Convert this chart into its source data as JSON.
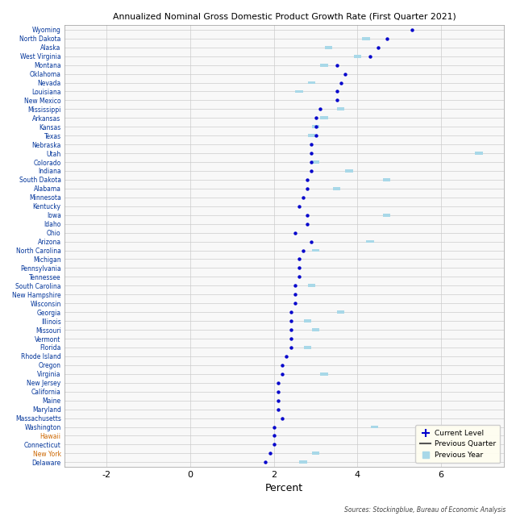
{
  "title": "Annualized Nominal Gross Domestic Product Growth Rate (First Quarter 2021)",
  "xlabel": "Percent",
  "source": "Sources: Stockingblue, Bureau of Economic Analysis",
  "states": [
    "Wyoming",
    "North Dakota",
    "Alaska",
    "West Virginia",
    "Montana",
    "Oklahoma",
    "Nevada",
    "Louisiana",
    "New Mexico",
    "Mississippi",
    "Arkansas",
    "Kansas",
    "Texas",
    "Nebraska",
    "Utah",
    "Colorado",
    "Indiana",
    "South Dakota",
    "Alabama",
    "Minnesota",
    "Kentucky",
    "Iowa",
    "Idaho",
    "Ohio",
    "Arizona",
    "North Carolina",
    "Michigan",
    "Pennsylvania",
    "Tennessee",
    "South Carolina",
    "New Hampshire",
    "Wisconsin",
    "Georgia",
    "Illinois",
    "Missouri",
    "Vermont",
    "Florida",
    "Rhode Island",
    "Oregon",
    "Virginia",
    "New Jersey",
    "California",
    "Maine",
    "Maryland",
    "Massachusetts",
    "Washington",
    "Hawaii",
    "Connecticut",
    "New York",
    "Delaware"
  ],
  "current": [
    5.3,
    4.7,
    4.5,
    4.3,
    3.5,
    3.7,
    3.6,
    3.5,
    3.5,
    3.1,
    3.0,
    3.0,
    3.0,
    2.9,
    2.9,
    2.9,
    2.9,
    2.8,
    2.8,
    2.7,
    2.6,
    2.8,
    2.8,
    2.5,
    2.9,
    2.7,
    2.6,
    2.6,
    2.6,
    2.5,
    2.5,
    2.5,
    2.4,
    2.4,
    2.4,
    2.4,
    2.4,
    2.3,
    2.2,
    2.2,
    2.1,
    2.1,
    2.1,
    2.1,
    2.2,
    2.0,
    2.0,
    2.0,
    1.9,
    1.8
  ],
  "prev_quarter": [
    null,
    null,
    null,
    null,
    null,
    null,
    null,
    null,
    null,
    null,
    null,
    null,
    null,
    null,
    null,
    null,
    null,
    null,
    null,
    null,
    null,
    null,
    null,
    null,
    null,
    null,
    null,
    null,
    null,
    null,
    null,
    null,
    null,
    null,
    null,
    null,
    null,
    null,
    null,
    null,
    null,
    null,
    null,
    null,
    null,
    null,
    null,
    null,
    null,
    null
  ],
  "prev_year": [
    null,
    4.2,
    3.3,
    4.0,
    3.2,
    null,
    2.9,
    2.6,
    null,
    3.6,
    3.2,
    3.0,
    2.9,
    null,
    6.9,
    3.0,
    3.8,
    4.7,
    3.5,
    null,
    null,
    4.7,
    null,
    null,
    4.3,
    3.0,
    null,
    null,
    null,
    2.9,
    null,
    null,
    3.6,
    2.8,
    3.0,
    null,
    2.8,
    null,
    null,
    3.2,
    null,
    null,
    null,
    null,
    null,
    4.4,
    null,
    null,
    3.0,
    2.7
  ],
  "label_colors": [
    "blue",
    "blue",
    "blue",
    "blue",
    "blue",
    "blue",
    "blue",
    "blue",
    "blue",
    "blue",
    "blue",
    "blue",
    "blue",
    "blue",
    "blue",
    "blue",
    "blue",
    "blue",
    "blue",
    "blue",
    "blue",
    "blue",
    "blue",
    "blue",
    "blue",
    "blue",
    "blue",
    "blue",
    "blue",
    "blue",
    "blue",
    "blue",
    "blue",
    "blue",
    "blue",
    "blue",
    "blue",
    "blue",
    "blue",
    "blue",
    "blue",
    "blue",
    "blue",
    "blue",
    "blue",
    "blue",
    "orange",
    "blue",
    "orange",
    "blue"
  ],
  "xlim": [
    -3.0,
    7.5
  ],
  "xticks": [
    -2,
    0,
    2,
    4,
    6
  ],
  "current_dot_color": "#0000CC",
  "prev_year_color": "#A8D8E8",
  "neg_color": "#FFB6C1",
  "background_color": "#F8F8F8",
  "grid_color": "#CCCCCC"
}
